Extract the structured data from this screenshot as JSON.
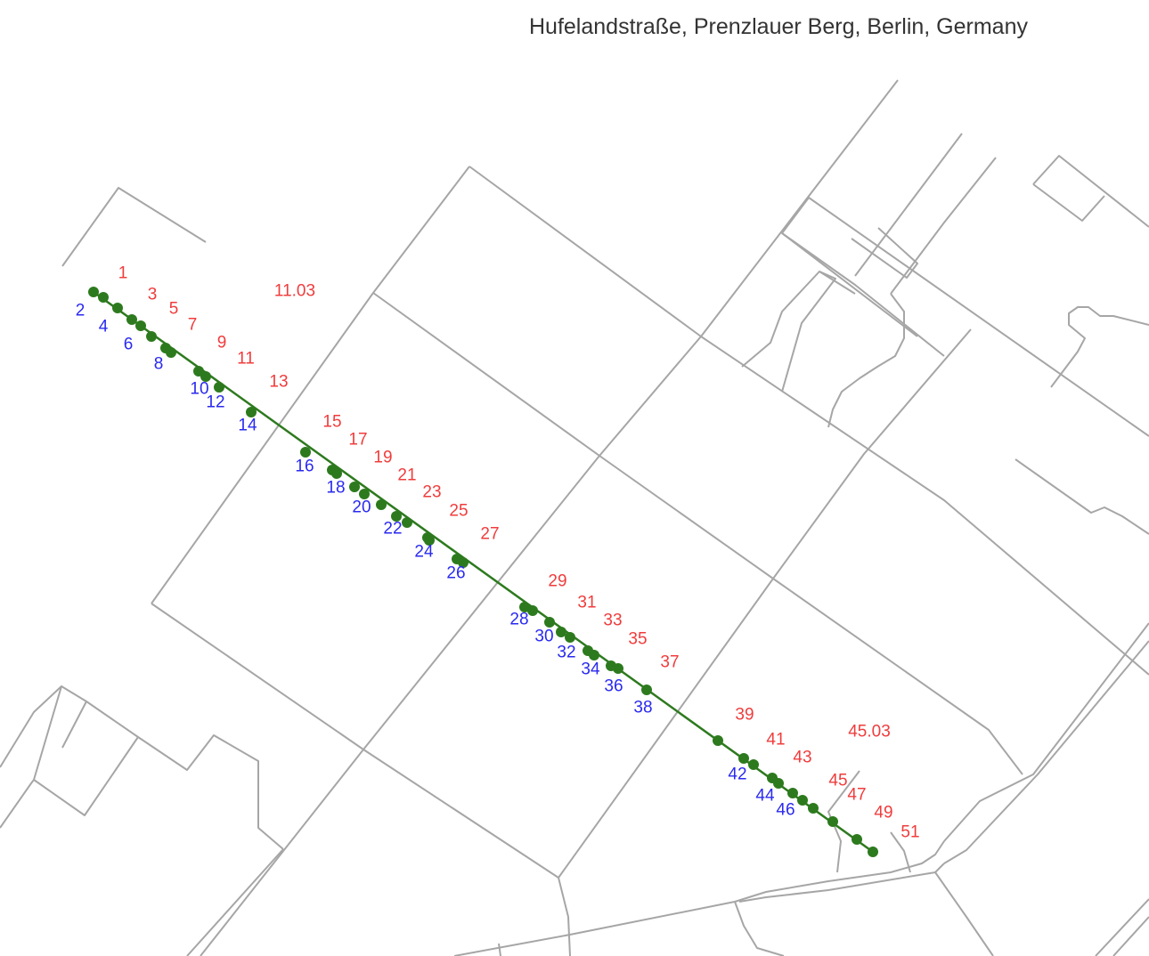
{
  "title": "Hufelandstraße, Prenzlauer Berg, Berlin, Germany",
  "colors": {
    "street": "#2d7a1e",
    "roads": "#a6a6a6",
    "odd_numbers": "#f03c3c",
    "even_numbers": "#2a2af0",
    "background": "#ffffff"
  },
  "house_numbers": {
    "odd": [
      "1",
      "3",
      "5",
      "7",
      "9",
      "11",
      "11.03",
      "13",
      "15",
      "17",
      "19",
      "21",
      "23",
      "25",
      "27",
      "29",
      "31",
      "33",
      "35",
      "37",
      "39",
      "41",
      "43",
      "45",
      "45.03",
      "47",
      "49",
      "51"
    ],
    "even": [
      "2",
      "4",
      "6",
      "8",
      "10",
      "12",
      "14",
      "16",
      "18",
      "20",
      "22",
      "24",
      "26",
      "28",
      "30",
      "32",
      "34",
      "36",
      "38",
      "42",
      "44",
      "46"
    ]
  }
}
